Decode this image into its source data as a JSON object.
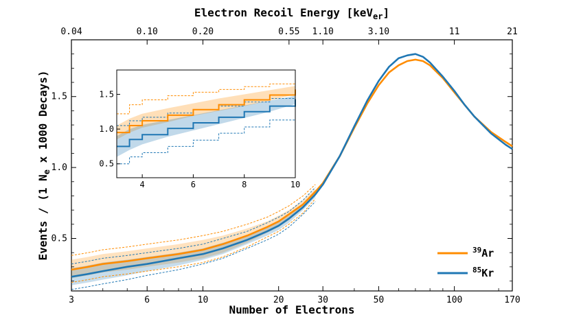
{
  "chart_data": {
    "type": "line",
    "title": "",
    "xlabel": "Number of Electrons",
    "ylabel": "Events / (1 N",
    "ylabel_sub": "e",
    "ylabel_rest": " x 1000 Decays)",
    "top_xlabel": "Electron Recoil Energy [keV",
    "top_xlabel_sub": "er",
    "top_xlabel_end": "]",
    "xscale": "log",
    "xlim": [
      3,
      170
    ],
    "ylim": [
      0.13,
      1.9
    ],
    "x_ticks": [
      3,
      6,
      10,
      20,
      30,
      50,
      100,
      170
    ],
    "x_tick_labels": [
      "3",
      "6",
      "10",
      "20",
      "30",
      "50",
      "100",
      "170"
    ],
    "y_ticks": [
      0.5,
      1.0,
      1.5
    ],
    "y_tick_labels": [
      "0.5",
      "1.0",
      "1.5"
    ],
    "top_ticks_at_electrons": [
      3,
      6,
      10,
      22,
      30,
      50,
      100,
      170
    ],
    "top_tick_labels": [
      "0.04",
      "0.10",
      "0.20",
      "0.55",
      "1.10",
      "3.10",
      "11",
      "21"
    ],
    "series": [
      {
        "name": "39Ar",
        "label_sup": "39",
        "label_base": "Ar",
        "color": "#ff8c00",
        "x": [
          3,
          3.5,
          4,
          5,
          6,
          8,
          10,
          12,
          15,
          18,
          20,
          22,
          25,
          28,
          30,
          35,
          40,
          45,
          50,
          55,
          60,
          65,
          70,
          75,
          80,
          90,
          100,
          110,
          120,
          140,
          160,
          170
        ],
        "values": [
          0.28,
          0.3,
          0.32,
          0.34,
          0.36,
          0.39,
          0.42,
          0.46,
          0.52,
          0.58,
          0.62,
          0.67,
          0.74,
          0.83,
          0.89,
          1.08,
          1.28,
          1.45,
          1.58,
          1.67,
          1.72,
          1.75,
          1.76,
          1.75,
          1.72,
          1.63,
          1.53,
          1.44,
          1.36,
          1.25,
          1.18,
          1.15
        ],
        "band_upper": [
          0.35,
          0.37,
          0.39,
          0.41,
          0.43,
          0.46,
          0.49,
          0.52,
          0.57,
          0.62,
          0.66,
          0.7,
          0.77,
          0.85
        ],
        "band_lower": [
          0.22,
          0.24,
          0.26,
          0.28,
          0.3,
          0.33,
          0.36,
          0.4,
          0.47,
          0.54,
          0.58,
          0.63,
          0.71,
          0.81
        ]
      },
      {
        "name": "85Kr",
        "label_sup": "85",
        "label_base": "Kr",
        "color": "#1f77b4",
        "x": [
          3,
          3.5,
          4,
          5,
          6,
          8,
          10,
          12,
          15,
          18,
          20,
          22,
          25,
          28,
          30,
          35,
          40,
          45,
          50,
          55,
          60,
          65,
          70,
          75,
          80,
          90,
          100,
          110,
          120,
          140,
          160,
          170
        ],
        "values": [
          0.23,
          0.25,
          0.27,
          0.3,
          0.32,
          0.36,
          0.39,
          0.43,
          0.49,
          0.55,
          0.59,
          0.64,
          0.72,
          0.81,
          0.88,
          1.08,
          1.29,
          1.47,
          1.61,
          1.71,
          1.77,
          1.79,
          1.8,
          1.78,
          1.74,
          1.64,
          1.54,
          1.44,
          1.36,
          1.24,
          1.16,
          1.13
        ],
        "band_upper": [
          0.29,
          0.31,
          0.33,
          0.35,
          0.37,
          0.4,
          0.43,
          0.47,
          0.52,
          0.58,
          0.62,
          0.66,
          0.74,
          0.83
        ],
        "band_lower": [
          0.17,
          0.19,
          0.21,
          0.24,
          0.27,
          0.31,
          0.35,
          0.39,
          0.46,
          0.52,
          0.56,
          0.61,
          0.7,
          0.79
        ]
      }
    ],
    "band_x": [
      3,
      3.5,
      4,
      5,
      6,
      8,
      10,
      12,
      15,
      18,
      20,
      22,
      25,
      28
    ],
    "inset": {
      "xlim": [
        3,
        10
      ],
      "ylim": [
        0.3,
        1.85
      ],
      "x_ticks": [
        4,
        6,
        8,
        10
      ],
      "x_tick_labels": [
        "4",
        "6",
        "8",
        "10"
      ],
      "y_ticks": [
        0.5,
        1.0,
        1.5
      ],
      "y_tick_labels": [
        "0.5",
        "1.0",
        "1.5"
      ],
      "x": [
        3,
        3.5,
        4,
        5,
        6,
        7,
        8,
        9,
        10
      ],
      "ar_values": [
        0.95,
        1.05,
        1.12,
        1.2,
        1.28,
        1.35,
        1.42,
        1.49,
        1.57
      ],
      "ar_band_upper": [
        1.05,
        1.15,
        1.22,
        1.3,
        1.37,
        1.44,
        1.5,
        1.56,
        1.62
      ],
      "ar_band_lower": [
        0.85,
        0.95,
        1.02,
        1.1,
        1.19,
        1.26,
        1.33,
        1.41,
        1.5
      ],
      "ar_dash_upper": [
        1.22,
        1.35,
        1.42,
        1.48,
        1.53,
        1.57,
        1.61,
        1.65,
        1.68
      ],
      "ar_dash_lower": [
        0.75,
        0.85,
        0.92,
        1.01,
        1.09,
        1.17,
        1.25,
        1.33,
        1.43
      ],
      "kr_values": [
        0.75,
        0.85,
        0.92,
        1.01,
        1.09,
        1.17,
        1.25,
        1.33,
        1.43
      ],
      "kr_band_upper": [
        0.9,
        1.0,
        1.06,
        1.13,
        1.2,
        1.27,
        1.34,
        1.41,
        1.48
      ],
      "kr_band_lower": [
        0.6,
        0.7,
        0.78,
        0.89,
        0.98,
        1.07,
        1.16,
        1.25,
        1.36
      ],
      "kr_dash_upper": [
        1.05,
        1.12,
        1.17,
        1.23,
        1.28,
        1.33,
        1.39,
        1.44,
        1.5
      ],
      "kr_dash_lower": [
        0.5,
        0.6,
        0.66,
        0.75,
        0.84,
        0.94,
        1.03,
        1.13,
        1.25
      ]
    }
  }
}
